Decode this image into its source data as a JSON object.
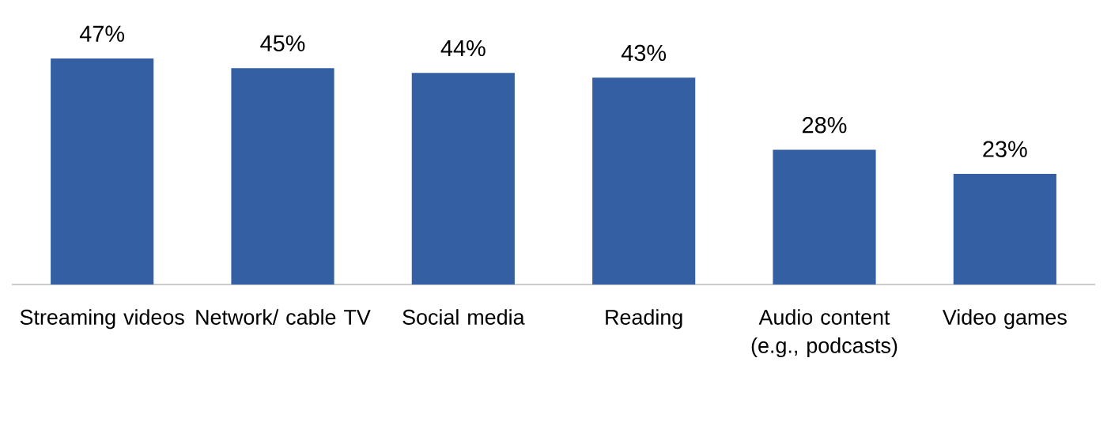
{
  "chart_data": {
    "type": "bar",
    "categories": [
      "Streaming videos",
      "Network/ cable TV",
      "Social media",
      "Reading",
      "Audio content (e.g., podcasts)",
      "Video games"
    ],
    "values": [
      47,
      45,
      44,
      43,
      28,
      23
    ],
    "value_labels": [
      "47%",
      "45%",
      "44%",
      "43%",
      "28%",
      "23%"
    ],
    "color": "#355fa3"
  }
}
